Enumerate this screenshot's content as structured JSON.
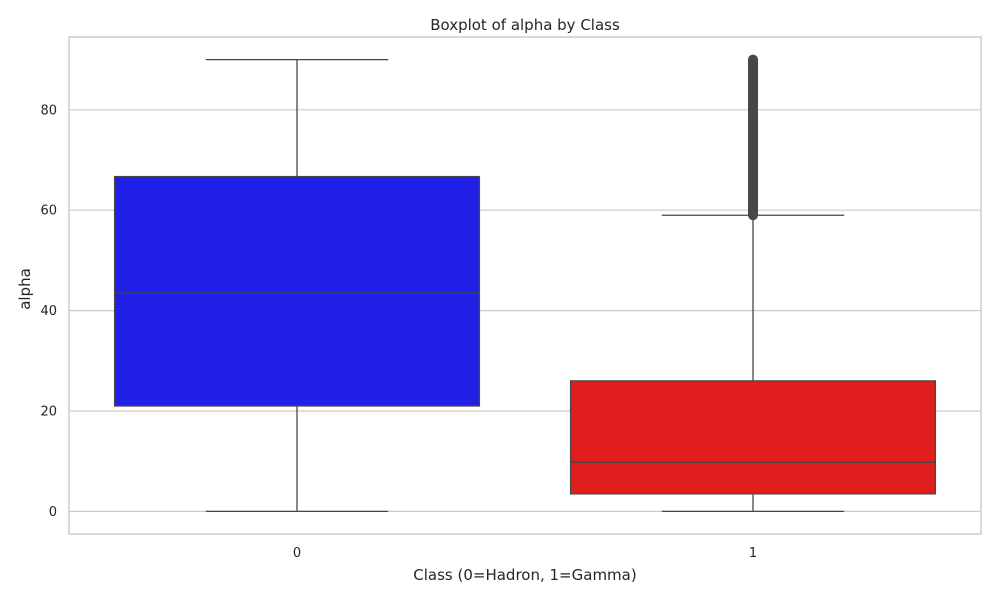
{
  "chart_data": {
    "type": "boxplot",
    "title": "Boxplot of alpha by Class",
    "xlabel": "Class (0=Hadron, 1=Gamma)",
    "ylabel": "alpha",
    "categories": [
      "0",
      "1"
    ],
    "yticks": [
      "0",
      "20",
      "40",
      "60",
      "80"
    ],
    "ylim": [
      -4.5,
      94.5
    ],
    "grid": true,
    "boxes": [
      {
        "category": "0",
        "whisker_low": 0,
        "q1": 21,
        "median": 43.5,
        "q3": 66.7,
        "whisker_high": 90,
        "outliers_range": null,
        "color": "#2020e6"
      },
      {
        "category": "1",
        "whisker_low": 0,
        "q1": 3.5,
        "median": 9.8,
        "q3": 26,
        "whisker_high": 59,
        "outliers_range": [
          59,
          90
        ],
        "color": "#e01e1e"
      }
    ]
  }
}
